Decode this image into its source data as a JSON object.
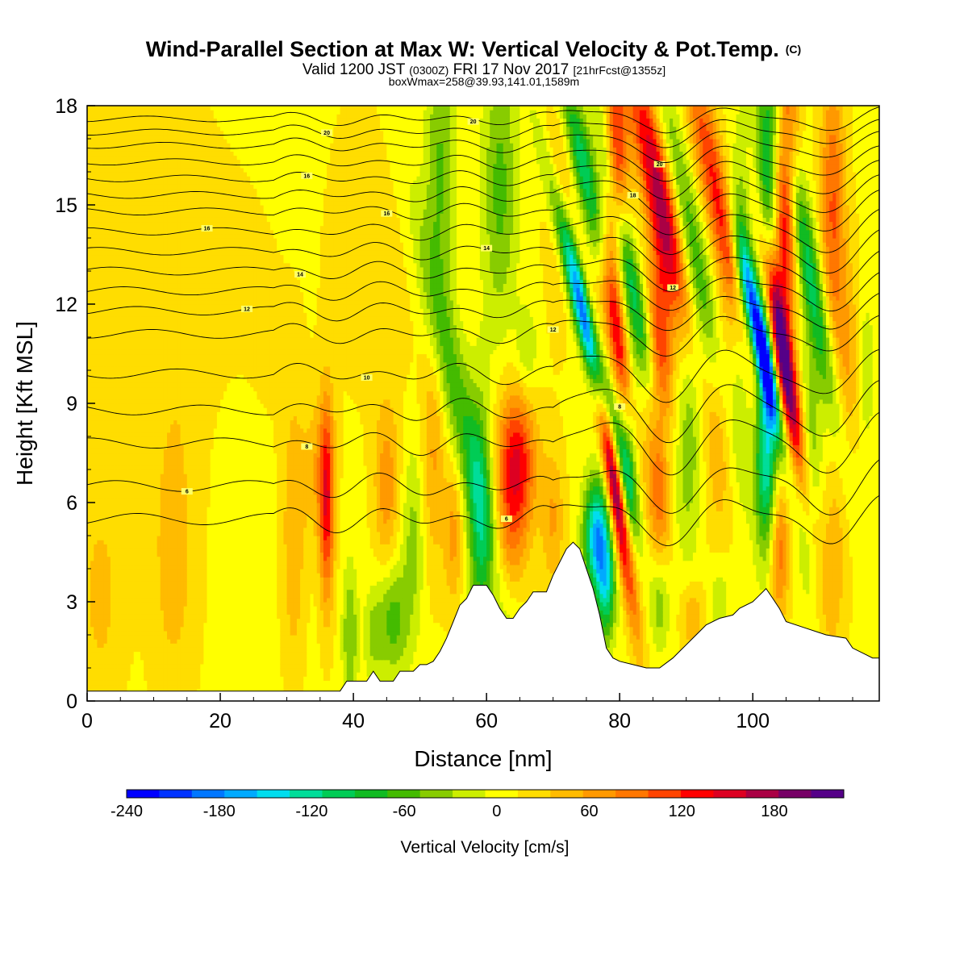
{
  "chart_data": {
    "type": "heatmap",
    "title": {
      "main": "Wind-Parallel Section at Max W: Vertical Velocity & Pot.Temp.",
      "main_suffix": "(C)",
      "line2_a": "Valid 1200 JST",
      "line2_b": "(0300Z)",
      "line2_c": "FRI 17 Nov 2017",
      "line2_d": "[21hrFcst@1355z]",
      "line3": "boxWmax=258@39.93,141.01,1589m"
    },
    "xlabel": "Distance [nm]",
    "ylabel": "Height [Kft MSL]",
    "xlim": [
      0,
      119
    ],
    "ylim": [
      0,
      18
    ],
    "xticks": [
      "0",
      "20",
      "40",
      "60",
      "80",
      "100"
    ],
    "yticks": [
      "0",
      "3",
      "6",
      "9",
      "12",
      "15",
      "18"
    ],
    "colorbar": {
      "label": "Vertical Velocity [cm/s]",
      "ticks": [
        "-240",
        "-180",
        "-120",
        "-60",
        "0",
        "60",
        "120",
        "180"
      ],
      "range": [
        -240,
        225
      ],
      "colors": [
        "#0000ff",
        "#0033ff",
        "#0077ff",
        "#00aaff",
        "#00ddee",
        "#00dd99",
        "#00cc55",
        "#11bb22",
        "#44bb00",
        "#88cc00",
        "#ccee00",
        "#ffff00",
        "#ffdd00",
        "#ffbb00",
        "#ff9900",
        "#ff7700",
        "#ff4400",
        "#ff0000",
        "#dd0022",
        "#aa0044",
        "#770066",
        "#550088"
      ]
    },
    "terrain_kft": [
      [
        0,
        0.3
      ],
      [
        38,
        0.3
      ],
      [
        39,
        0.6
      ],
      [
        42,
        0.6
      ],
      [
        43,
        0.9
      ],
      [
        44,
        0.6
      ],
      [
        46,
        0.6
      ],
      [
        47,
        0.9
      ],
      [
        49,
        0.9
      ],
      [
        50,
        1.1
      ],
      [
        51,
        1.1
      ],
      [
        52,
        1.2
      ],
      [
        53,
        1.5
      ],
      [
        54,
        1.9
      ],
      [
        55,
        2.4
      ],
      [
        56,
        2.9
      ],
      [
        57,
        3.1
      ],
      [
        58,
        3.5
      ],
      [
        60,
        3.5
      ],
      [
        61,
        3.2
      ],
      [
        62,
        2.8
      ],
      [
        63,
        2.5
      ],
      [
        64,
        2.5
      ],
      [
        65,
        2.8
      ],
      [
        66,
        3.0
      ],
      [
        67,
        3.3
      ],
      [
        69,
        3.3
      ],
      [
        70,
        3.8
      ],
      [
        71,
        4.2
      ],
      [
        72,
        4.6
      ],
      [
        73,
        4.8
      ],
      [
        74,
        4.6
      ],
      [
        75,
        4.0
      ],
      [
        76,
        3.4
      ],
      [
        77,
        2.6
      ],
      [
        78,
        1.6
      ],
      [
        79,
        1.3
      ],
      [
        80,
        1.2
      ],
      [
        82,
        1.1
      ],
      [
        84,
        1.0
      ],
      [
        86,
        1.0
      ],
      [
        88,
        1.3
      ],
      [
        89,
        1.5
      ],
      [
        90,
        1.7
      ],
      [
        91,
        1.9
      ],
      [
        92,
        2.1
      ],
      [
        93,
        2.3
      ],
      [
        95,
        2.5
      ],
      [
        97,
        2.6
      ],
      [
        98,
        2.8
      ],
      [
        100,
        3.0
      ],
      [
        101,
        3.2
      ],
      [
        102,
        3.4
      ],
      [
        103,
        3.1
      ],
      [
        104,
        2.8
      ],
      [
        105,
        2.4
      ],
      [
        108,
        2.2
      ],
      [
        111,
        2.0
      ],
      [
        114,
        1.9
      ],
      [
        115,
        1.6
      ],
      [
        117,
        1.4
      ],
      [
        118,
        1.3
      ],
      [
        119,
        1.3
      ]
    ],
    "features": [
      {
        "x": 36,
        "z": 6.0,
        "sx": 0.8,
        "sz": 2.2,
        "w": 120
      },
      {
        "x": 34.5,
        "z": 7.0,
        "sx": 1.5,
        "sz": 1.5,
        "w": 40
      },
      {
        "x": 31,
        "z": 5.0,
        "sx": 1.2,
        "sz": 3.0,
        "w": 45
      },
      {
        "x": 39.5,
        "z": 2.0,
        "sx": 0.8,
        "sz": 1.5,
        "w": -60
      },
      {
        "x": 45,
        "z": 6.5,
        "sx": 1.3,
        "sz": 1.8,
        "w": 60
      },
      {
        "x": 46,
        "z": 2.5,
        "sx": 1.6,
        "sz": 1.2,
        "w": -70
      },
      {
        "x": 43,
        "z": 2.0,
        "sx": 1.0,
        "sz": 1.0,
        "w": -40
      },
      {
        "x": 49,
        "z": 5.0,
        "sx": 1.2,
        "sz": 2.0,
        "w": -45
      },
      {
        "x": 52,
        "z": 7.5,
        "sx": 1.2,
        "sz": 2.5,
        "w": 50
      },
      {
        "x": 55,
        "z": 5.0,
        "sx": 1.0,
        "sz": 1.5,
        "w": 55
      },
      {
        "x": 57,
        "z": 8.0,
        "sx": 1.8,
        "sz": 5.0,
        "w": -75,
        "tilt": -1.1
      },
      {
        "x": 53,
        "z": 16.0,
        "sx": 1.6,
        "sz": 3.0,
        "w": -65
      },
      {
        "x": 64.5,
        "z": 7.2,
        "sx": 2.0,
        "sz": 1.6,
        "w": 135
      },
      {
        "x": 63,
        "z": 4.5,
        "sx": 1.8,
        "sz": 1.5,
        "w": 55
      },
      {
        "x": 59,
        "z": 5.0,
        "sx": 1.3,
        "sz": 3.0,
        "w": -80
      },
      {
        "x": 62,
        "z": 15.5,
        "sx": 1.8,
        "sz": 3.0,
        "w": -65
      },
      {
        "x": 66,
        "z": 10.5,
        "sx": 1.2,
        "sz": 1.0,
        "w": -40
      },
      {
        "x": 70,
        "z": 5.5,
        "sx": 1.2,
        "sz": 1.5,
        "w": 50
      },
      {
        "x": 71,
        "z": 16.0,
        "sx": 1.6,
        "sz": 3.0,
        "w": 40
      },
      {
        "x": 75.5,
        "z": 11.0,
        "sx": 1.1,
        "sz": 3.0,
        "w": -230,
        "tilt": -1.2
      },
      {
        "x": 75.5,
        "z": 15.5,
        "sx": 1.4,
        "sz": 3.0,
        "w": -130,
        "tilt": -1.2
      },
      {
        "x": 76.5,
        "z": 5.0,
        "sx": 1.3,
        "sz": 1.2,
        "w": -170
      },
      {
        "x": 78,
        "z": 3.5,
        "sx": 1.0,
        "sz": 1.2,
        "w": -120
      },
      {
        "x": 79,
        "z": 7.0,
        "sx": 0.9,
        "sz": 3.0,
        "w": 215,
        "tilt": -0.7
      },
      {
        "x": 79.5,
        "z": 11.5,
        "sx": 1.1,
        "sz": 2.5,
        "w": 150,
        "tilt": -0.7
      },
      {
        "x": 79.5,
        "z": 16.0,
        "sx": 1.2,
        "sz": 2.5,
        "w": 120
      },
      {
        "x": 81.5,
        "z": 13.0,
        "sx": 1.1,
        "sz": 3.5,
        "w": -100,
        "tilt": -1.0
      },
      {
        "x": 81.5,
        "z": 7.5,
        "sx": 1.0,
        "sz": 2.0,
        "w": -80
      },
      {
        "x": 86,
        "z": 15.5,
        "sx": 1.8,
        "sz": 3.0,
        "w": 165,
        "tilt": -1.0
      },
      {
        "x": 86,
        "z": 10.5,
        "sx": 1.4,
        "sz": 2.5,
        "w": 110
      },
      {
        "x": 86,
        "z": 6.0,
        "sx": 1.2,
        "sz": 1.5,
        "w": 60
      },
      {
        "x": 86,
        "z": 3.0,
        "sx": 1.0,
        "sz": 1.0,
        "w": -50
      },
      {
        "x": 90.5,
        "z": 14.0,
        "sx": 1.6,
        "sz": 4.0,
        "w": -90,
        "tilt": -1.0
      },
      {
        "x": 90.5,
        "z": 8.0,
        "sx": 1.3,
        "sz": 2.5,
        "w": -50
      },
      {
        "x": 95,
        "z": 15.0,
        "sx": 1.6,
        "sz": 3.5,
        "w": 120,
        "tilt": -1.0
      },
      {
        "x": 95,
        "z": 8.5,
        "sx": 1.5,
        "sz": 2.5,
        "w": 50
      },
      {
        "x": 98.5,
        "z": 13.5,
        "sx": 1.2,
        "sz": 3.5,
        "w": -60
      },
      {
        "x": 101,
        "z": 11.0,
        "sx": 1.0,
        "sz": 2.2,
        "w": -240,
        "tilt": -1.0
      },
      {
        "x": 102,
        "z": 7.5,
        "sx": 1.1,
        "sz": 2.0,
        "w": -150
      },
      {
        "x": 102,
        "z": 15.0,
        "sx": 1.2,
        "sz": 3.0,
        "w": -110
      },
      {
        "x": 104.5,
        "z": 10.5,
        "sx": 1.1,
        "sz": 3.0,
        "w": 210,
        "tilt": -0.8
      },
      {
        "x": 105,
        "z": 15.5,
        "sx": 1.2,
        "sz": 3.0,
        "w": 150
      },
      {
        "x": 104,
        "z": 4.5,
        "sx": 1.0,
        "sz": 1.5,
        "w": 80
      },
      {
        "x": 108.5,
        "z": 13.0,
        "sx": 1.3,
        "sz": 4.0,
        "w": -110,
        "tilt": -0.9
      },
      {
        "x": 108.5,
        "z": 7.0,
        "sx": 1.3,
        "sz": 2.5,
        "w": -60
      },
      {
        "x": 112,
        "z": 15.0,
        "sx": 1.3,
        "sz": 3.0,
        "w": 90
      },
      {
        "x": 114,
        "z": 10.0,
        "sx": 1.5,
        "sz": 2.5,
        "w": 50
      },
      {
        "x": 112,
        "z": 4.0,
        "sx": 1.5,
        "sz": 2.0,
        "w": 40
      },
      {
        "x": 117,
        "z": 10.0,
        "sx": 0.8,
        "sz": 1.5,
        "w": -40
      },
      {
        "x": 91,
        "z": 2.5,
        "sx": 1.2,
        "sz": 0.8,
        "w": 50
      },
      {
        "x": 95,
        "z": 3.0,
        "sx": 1.0,
        "sz": 0.8,
        "w": -40
      },
      {
        "x": 13,
        "z": 4.0,
        "sx": 2.5,
        "sz": 3.0,
        "w": 35
      },
      {
        "x": 5,
        "z": 14.0,
        "sx": 8.0,
        "sz": 5.0,
        "w": 25
      },
      {
        "x": 20,
        "z": 11.0,
        "sx": 6.0,
        "sz": 3.0,
        "w": 20
      },
      {
        "x": 22,
        "z": 8.0,
        "sx": 2.5,
        "sz": 2.0,
        "w": -20
      },
      {
        "x": 44,
        "z": 14.0,
        "sx": 6.0,
        "sz": 4.0,
        "w": 15
      },
      {
        "x": 2,
        "z": 3.0,
        "sx": 2.5,
        "sz": 2.5,
        "w": 30
      }
    ],
    "contours": [
      {
        "z": 5.5,
        "label": "6",
        "lx": 63
      },
      {
        "z": 6.5,
        "label": "6",
        "lx": 15
      },
      {
        "z": 7.8,
        "label": "8",
        "lx": 33
      },
      {
        "z": 8.8,
        "label": "8",
        "lx": 80
      },
      {
        "z": 9.9,
        "label": "10",
        "lx": 42
      },
      {
        "z": 11.1,
        "label": "12",
        "lx": 70
      },
      {
        "z": 11.8,
        "label": "12",
        "lx": 24
      },
      {
        "z": 12.4,
        "label": "12",
        "lx": 88
      },
      {
        "z": 13.0,
        "label": "14",
        "lx": 32
      },
      {
        "z": 13.6,
        "label": "14",
        "lx": 60
      },
      {
        "z": 14.2,
        "label": "16",
        "lx": 18
      },
      {
        "z": 14.8,
        "label": "16",
        "lx": 45
      },
      {
        "z": 15.3,
        "label": "18",
        "lx": 82
      },
      {
        "z": 15.8,
        "label": "16",
        "lx": 33
      },
      {
        "z": 16.3,
        "label": "20",
        "lx": 86
      },
      {
        "z": 16.8,
        "label": "",
        "lx": 0
      },
      {
        "z": 17.2,
        "label": "20",
        "lx": 36
      },
      {
        "z": 17.6,
        "label": "20",
        "lx": 58
      }
    ]
  }
}
